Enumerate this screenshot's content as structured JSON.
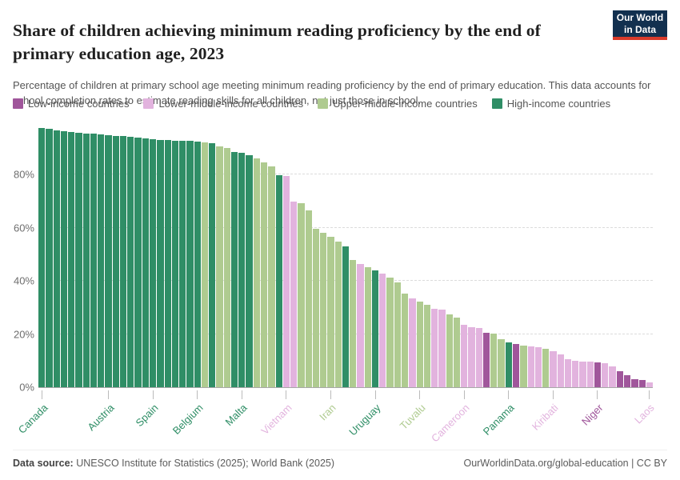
{
  "header": {
    "title": "Share of children achieving minimum reading proficiency by the end of primary education age, 2023",
    "subtitle": "Percentage of children at primary school age meeting minimum reading proficiency by the end of primary education. This data accounts for school completion rates to estimate reading skills for all children, not just those in school.",
    "logo": {
      "line1": "Our World",
      "line2": "in Data",
      "bg_color": "#12304F",
      "accent_color": "#D93B2B"
    }
  },
  "chart_data": {
    "type": "bar",
    "title": "Share of children achieving minimum reading proficiency by the end of primary education age, 2023",
    "unit": "%",
    "ylim": [
      0,
      100
    ],
    "y_ticks": [
      0,
      20,
      40,
      60,
      80
    ],
    "grid": "horizontal-dashed",
    "legend_position": "top",
    "bar_count": 83,
    "legend_order": [
      "low",
      "lower_middle",
      "upper_middle",
      "high"
    ],
    "groups": {
      "low": {
        "label": "Low-income countries",
        "color": "#A0569B"
      },
      "lower_middle": {
        "label": "Lower-middle-income countries",
        "color": "#E2B3DE"
      },
      "upper_middle": {
        "label": "Upper-middle-income countries",
        "color": "#AFCB90"
      },
      "high": {
        "label": "High-income countries",
        "color": "#2F8E66"
      }
    },
    "bars": [
      {
        "value": 97.5,
        "group": "high"
      },
      {
        "value": 97.2,
        "group": "high"
      },
      {
        "value": 96.8,
        "group": "high"
      },
      {
        "value": 96.3,
        "group": "high"
      },
      {
        "value": 96.0,
        "group": "high"
      },
      {
        "value": 95.8,
        "group": "high"
      },
      {
        "value": 95.6,
        "group": "high"
      },
      {
        "value": 95.4,
        "group": "high"
      },
      {
        "value": 95.2,
        "group": "high"
      },
      {
        "value": 95.0,
        "group": "high"
      },
      {
        "value": 94.7,
        "group": "high"
      },
      {
        "value": 94.5,
        "group": "high"
      },
      {
        "value": 94.2,
        "group": "high"
      },
      {
        "value": 93.9,
        "group": "high"
      },
      {
        "value": 93.6,
        "group": "high"
      },
      {
        "value": 93.4,
        "group": "high"
      },
      {
        "value": 93.2,
        "group": "high"
      },
      {
        "value": 93.0,
        "group": "high"
      },
      {
        "value": 92.9,
        "group": "high"
      },
      {
        "value": 92.8,
        "group": "high"
      },
      {
        "value": 92.7,
        "group": "high"
      },
      {
        "value": 92.6,
        "group": "high"
      },
      {
        "value": 92.3,
        "group": "upper_middle"
      },
      {
        "value": 91.9,
        "group": "high"
      },
      {
        "value": 90.6,
        "group": "upper_middle"
      },
      {
        "value": 90.0,
        "group": "upper_middle"
      },
      {
        "value": 88.7,
        "group": "high"
      },
      {
        "value": 88.2,
        "group": "high"
      },
      {
        "value": 87.4,
        "group": "high"
      },
      {
        "value": 86.0,
        "group": "upper_middle"
      },
      {
        "value": 84.5,
        "group": "upper_middle"
      },
      {
        "value": 83.2,
        "group": "upper_middle"
      },
      {
        "value": 79.8,
        "group": "high"
      },
      {
        "value": 79.4,
        "group": "lower_middle"
      },
      {
        "value": 70.0,
        "group": "lower_middle"
      },
      {
        "value": 69.4,
        "group": "upper_middle"
      },
      {
        "value": 66.5,
        "group": "upper_middle"
      },
      {
        "value": 59.5,
        "group": "upper_middle"
      },
      {
        "value": 58.2,
        "group": "upper_middle"
      },
      {
        "value": 56.5,
        "group": "upper_middle"
      },
      {
        "value": 54.9,
        "group": "upper_middle"
      },
      {
        "value": 53.0,
        "group": "high"
      },
      {
        "value": 47.9,
        "group": "upper_middle"
      },
      {
        "value": 46.4,
        "group": "lower_middle"
      },
      {
        "value": 45.1,
        "group": "upper_middle"
      },
      {
        "value": 43.9,
        "group": "high"
      },
      {
        "value": 42.9,
        "group": "lower_middle"
      },
      {
        "value": 41.4,
        "group": "upper_middle"
      },
      {
        "value": 39.6,
        "group": "upper_middle"
      },
      {
        "value": 35.3,
        "group": "upper_middle"
      },
      {
        "value": 33.3,
        "group": "lower_middle"
      },
      {
        "value": 32.3,
        "group": "upper_middle"
      },
      {
        "value": 31.0,
        "group": "upper_middle"
      },
      {
        "value": 29.6,
        "group": "lower_middle"
      },
      {
        "value": 29.3,
        "group": "lower_middle"
      },
      {
        "value": 27.3,
        "group": "upper_middle"
      },
      {
        "value": 26.1,
        "group": "upper_middle"
      },
      {
        "value": 23.5,
        "group": "lower_middle"
      },
      {
        "value": 22.5,
        "group": "lower_middle"
      },
      {
        "value": 22.3,
        "group": "lower_middle"
      },
      {
        "value": 20.5,
        "group": "low"
      },
      {
        "value": 20.3,
        "group": "upper_middle"
      },
      {
        "value": 18.0,
        "group": "upper_middle"
      },
      {
        "value": 17.0,
        "group": "high"
      },
      {
        "value": 16.3,
        "group": "low"
      },
      {
        "value": 15.8,
        "group": "upper_middle"
      },
      {
        "value": 15.4,
        "group": "lower_middle"
      },
      {
        "value": 15.1,
        "group": "lower_middle"
      },
      {
        "value": 14.5,
        "group": "upper_middle"
      },
      {
        "value": 13.5,
        "group": "lower_middle"
      },
      {
        "value": 12.3,
        "group": "lower_middle"
      },
      {
        "value": 10.4,
        "group": "lower_middle"
      },
      {
        "value": 10.0,
        "group": "lower_middle"
      },
      {
        "value": 9.7,
        "group": "lower_middle"
      },
      {
        "value": 9.5,
        "group": "lower_middle"
      },
      {
        "value": 9.2,
        "group": "low"
      },
      {
        "value": 9.0,
        "group": "lower_middle"
      },
      {
        "value": 7.9,
        "group": "lower_middle"
      },
      {
        "value": 5.9,
        "group": "low"
      },
      {
        "value": 4.4,
        "group": "low"
      },
      {
        "value": 2.9,
        "group": "low"
      },
      {
        "value": 2.7,
        "group": "low"
      },
      {
        "value": 1.9,
        "group": "lower_middle"
      }
    ],
    "x_ticks": [
      {
        "bar": 1,
        "label": "Canada",
        "group": "high"
      },
      {
        "bar": 10,
        "label": "Austria",
        "group": "high"
      },
      {
        "bar": 16,
        "label": "Spain",
        "group": "high"
      },
      {
        "bar": 22,
        "label": "Belgium",
        "group": "high"
      },
      {
        "bar": 28,
        "label": "Malta",
        "group": "high"
      },
      {
        "bar": 34,
        "label": "Vietnam",
        "group": "lower_middle"
      },
      {
        "bar": 40,
        "label": "Iran",
        "group": "upper_middle"
      },
      {
        "bar": 46,
        "label": "Uruguay",
        "group": "high"
      },
      {
        "bar": 52,
        "label": "Tuvalu",
        "group": "upper_middle"
      },
      {
        "bar": 58,
        "label": "Cameroon",
        "group": "lower_middle"
      },
      {
        "bar": 64,
        "label": "Panama",
        "group": "high"
      },
      {
        "bar": 70,
        "label": "Kiribati",
        "group": "lower_middle"
      },
      {
        "bar": 76,
        "label": "Niger",
        "group": "low"
      },
      {
        "bar": 83,
        "label": "Laos",
        "group": "lower_middle"
      }
    ]
  },
  "footer": {
    "source_label": "Data source:",
    "source_text": " UNESCO Institute for Statistics (2025); World Bank (2025)",
    "link_text": "OurWorldinData.org/global-education | CC BY"
  }
}
